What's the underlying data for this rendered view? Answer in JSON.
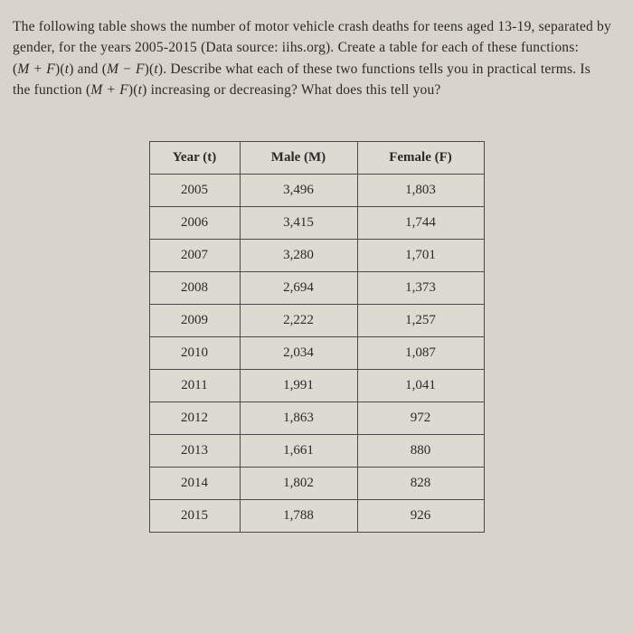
{
  "question": {
    "line1": "The following table shows the number of motor vehicle crash deaths for teens aged 13-19, separated by",
    "line2": "gender, for the years 2005-2015 (Data source: iihs.org). Create a table for each of these functions:",
    "line3_prefix": "(",
    "line3_math1": "M + F",
    "line3_mid1": ")(",
    "line3_var1": "t",
    "line3_mid2": ") and (",
    "line3_math2": "M − F",
    "line3_mid3": ")(",
    "line3_var2": "t",
    "line3_suffix": "). Describe what each of these two functions tells you in practical terms. Is",
    "line4_prefix": "the function (",
    "line4_math": "M + F",
    "line4_mid": ")(",
    "line4_var": "t",
    "line4_suffix": ") increasing or decreasing? What does this tell you?"
  },
  "table": {
    "headers": {
      "year": "Year (t)",
      "male": "Male (M)",
      "female": "Female (F)"
    },
    "rows": [
      {
        "year": "2005",
        "male": "3,496",
        "female": "1,803"
      },
      {
        "year": "2006",
        "male": "3,415",
        "female": "1,744"
      },
      {
        "year": "2007",
        "male": "3,280",
        "female": "1,701"
      },
      {
        "year": "2008",
        "male": "2,694",
        "female": "1,373"
      },
      {
        "year": "2009",
        "male": "2,222",
        "female": "1,257"
      },
      {
        "year": "2010",
        "male": "2,034",
        "female": "1,087"
      },
      {
        "year": "2011",
        "male": "1,991",
        "female": "1,041"
      },
      {
        "year": "2012",
        "male": "1,863",
        "female": "972"
      },
      {
        "year": "2013",
        "male": "1,661",
        "female": "880"
      },
      {
        "year": "2014",
        "male": "1,802",
        "female": "828"
      },
      {
        "year": "2015",
        "male": "1,788",
        "female": "926"
      }
    ],
    "col_widths": {
      "year": 100,
      "male": 130,
      "female": 140
    },
    "border_color": "#4a4a4a",
    "background_color": "#dddad1",
    "font_size": 15
  },
  "page": {
    "background_color": "#d8d4cb",
    "text_color": "#2a2a2a"
  }
}
